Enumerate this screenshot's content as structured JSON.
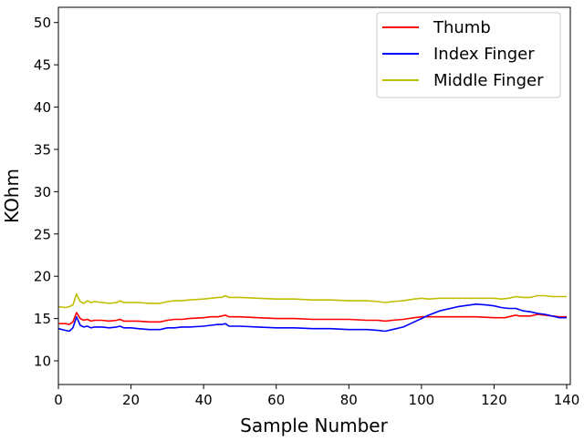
{
  "chart_data": {
    "type": "line",
    "title": "",
    "xlabel": "Sample Number",
    "ylabel": "KOhm",
    "xlim": [
      0,
      141
    ],
    "ylim": [
      7.2,
      51.8
    ],
    "xticks": [
      0,
      20,
      40,
      60,
      80,
      100,
      120,
      140
    ],
    "yticks": [
      10,
      15,
      20,
      25,
      30,
      35,
      40,
      45,
      50
    ],
    "grid": false,
    "legend_position": "top-right",
    "series": [
      {
        "name": "Thumb",
        "color": "#ff0000",
        "points": [
          [
            0,
            14.4
          ],
          [
            2,
            14.4
          ],
          [
            3,
            14.3
          ],
          [
            4,
            14.6
          ],
          [
            5,
            15.7
          ],
          [
            6,
            15.0
          ],
          [
            7,
            14.8
          ],
          [
            8,
            14.9
          ],
          [
            9,
            14.7
          ],
          [
            10,
            14.8
          ],
          [
            12,
            14.8
          ],
          [
            14,
            14.7
          ],
          [
            16,
            14.8
          ],
          [
            17,
            14.9
          ],
          [
            18,
            14.7
          ],
          [
            20,
            14.7
          ],
          [
            22,
            14.7
          ],
          [
            25,
            14.6
          ],
          [
            28,
            14.6
          ],
          [
            30,
            14.8
          ],
          [
            32,
            14.9
          ],
          [
            34,
            14.9
          ],
          [
            36,
            15.0
          ],
          [
            40,
            15.1
          ],
          [
            42,
            15.2
          ],
          [
            44,
            15.2
          ],
          [
            45,
            15.3
          ],
          [
            46,
            15.4
          ],
          [
            47,
            15.2
          ],
          [
            50,
            15.2
          ],
          [
            55,
            15.1
          ],
          [
            60,
            15.0
          ],
          [
            65,
            15.0
          ],
          [
            70,
            14.9
          ],
          [
            75,
            14.9
          ],
          [
            80,
            14.9
          ],
          [
            85,
            14.8
          ],
          [
            88,
            14.8
          ],
          [
            90,
            14.7
          ],
          [
            92,
            14.8
          ],
          [
            95,
            14.9
          ],
          [
            98,
            15.1
          ],
          [
            100,
            15.2
          ],
          [
            102,
            15.2
          ],
          [
            105,
            15.2
          ],
          [
            110,
            15.2
          ],
          [
            115,
            15.2
          ],
          [
            120,
            15.1
          ],
          [
            123,
            15.1
          ],
          [
            125,
            15.3
          ],
          [
            126,
            15.4
          ],
          [
            127,
            15.3
          ],
          [
            128,
            15.3
          ],
          [
            130,
            15.3
          ],
          [
            132,
            15.5
          ],
          [
            134,
            15.4
          ],
          [
            136,
            15.3
          ],
          [
            138,
            15.2
          ],
          [
            140,
            15.2
          ]
        ]
      },
      {
        "name": "Index Finger",
        "color": "#0000ff",
        "points": [
          [
            0,
            13.8
          ],
          [
            2,
            13.6
          ],
          [
            3,
            13.5
          ],
          [
            4,
            13.9
          ],
          [
            5,
            15.2
          ],
          [
            6,
            14.2
          ],
          [
            7,
            14.0
          ],
          [
            8,
            14.1
          ],
          [
            9,
            13.9
          ],
          [
            10,
            14.0
          ],
          [
            12,
            14.0
          ],
          [
            14,
            13.9
          ],
          [
            16,
            14.0
          ],
          [
            17,
            14.1
          ],
          [
            18,
            13.9
          ],
          [
            20,
            13.9
          ],
          [
            22,
            13.8
          ],
          [
            25,
            13.7
          ],
          [
            28,
            13.7
          ],
          [
            30,
            13.9
          ],
          [
            32,
            13.9
          ],
          [
            34,
            14.0
          ],
          [
            36,
            14.0
          ],
          [
            40,
            14.1
          ],
          [
            42,
            14.2
          ],
          [
            44,
            14.3
          ],
          [
            45,
            14.3
          ],
          [
            46,
            14.4
          ],
          [
            47,
            14.1
          ],
          [
            50,
            14.1
          ],
          [
            55,
            14.0
          ],
          [
            60,
            13.9
          ],
          [
            65,
            13.9
          ],
          [
            70,
            13.8
          ],
          [
            75,
            13.8
          ],
          [
            80,
            13.7
          ],
          [
            85,
            13.7
          ],
          [
            88,
            13.6
          ],
          [
            90,
            13.5
          ],
          [
            92,
            13.7
          ],
          [
            95,
            14.0
          ],
          [
            98,
            14.6
          ],
          [
            100,
            15.0
          ],
          [
            102,
            15.4
          ],
          [
            105,
            15.9
          ],
          [
            110,
            16.4
          ],
          [
            115,
            16.7
          ],
          [
            118,
            16.6
          ],
          [
            120,
            16.5
          ],
          [
            122,
            16.3
          ],
          [
            124,
            16.2
          ],
          [
            126,
            16.2
          ],
          [
            128,
            15.9
          ],
          [
            130,
            15.8
          ],
          [
            132,
            15.6
          ],
          [
            134,
            15.5
          ],
          [
            136,
            15.3
          ],
          [
            138,
            15.1
          ],
          [
            140,
            15.1
          ]
        ]
      },
      {
        "name": "Middle Finger",
        "color": "#bfbf00",
        "points": [
          [
            0,
            16.4
          ],
          [
            2,
            16.3
          ],
          [
            3,
            16.4
          ],
          [
            4,
            16.6
          ],
          [
            5,
            17.9
          ],
          [
            6,
            17.0
          ],
          [
            7,
            16.8
          ],
          [
            8,
            17.1
          ],
          [
            9,
            16.9
          ],
          [
            10,
            17.0
          ],
          [
            12,
            16.9
          ],
          [
            14,
            16.8
          ],
          [
            16,
            16.9
          ],
          [
            17,
            17.1
          ],
          [
            18,
            16.9
          ],
          [
            20,
            16.9
          ],
          [
            22,
            16.9
          ],
          [
            25,
            16.8
          ],
          [
            28,
            16.8
          ],
          [
            30,
            17.0
          ],
          [
            32,
            17.1
          ],
          [
            34,
            17.1
          ],
          [
            36,
            17.2
          ],
          [
            40,
            17.3
          ],
          [
            42,
            17.4
          ],
          [
            44,
            17.5
          ],
          [
            45,
            17.5
          ],
          [
            46,
            17.7
          ],
          [
            47,
            17.5
          ],
          [
            50,
            17.5
          ],
          [
            55,
            17.4
          ],
          [
            60,
            17.3
          ],
          [
            65,
            17.3
          ],
          [
            70,
            17.2
          ],
          [
            75,
            17.2
          ],
          [
            80,
            17.1
          ],
          [
            85,
            17.1
          ],
          [
            88,
            17.0
          ],
          [
            90,
            16.9
          ],
          [
            92,
            17.0
          ],
          [
            95,
            17.1
          ],
          [
            98,
            17.3
          ],
          [
            100,
            17.4
          ],
          [
            102,
            17.3
          ],
          [
            105,
            17.4
          ],
          [
            110,
            17.4
          ],
          [
            115,
            17.4
          ],
          [
            120,
            17.4
          ],
          [
            122,
            17.3
          ],
          [
            124,
            17.4
          ],
          [
            126,
            17.6
          ],
          [
            128,
            17.5
          ],
          [
            130,
            17.5
          ],
          [
            132,
            17.7
          ],
          [
            134,
            17.7
          ],
          [
            136,
            17.6
          ],
          [
            138,
            17.6
          ],
          [
            140,
            17.6
          ]
        ]
      }
    ]
  }
}
